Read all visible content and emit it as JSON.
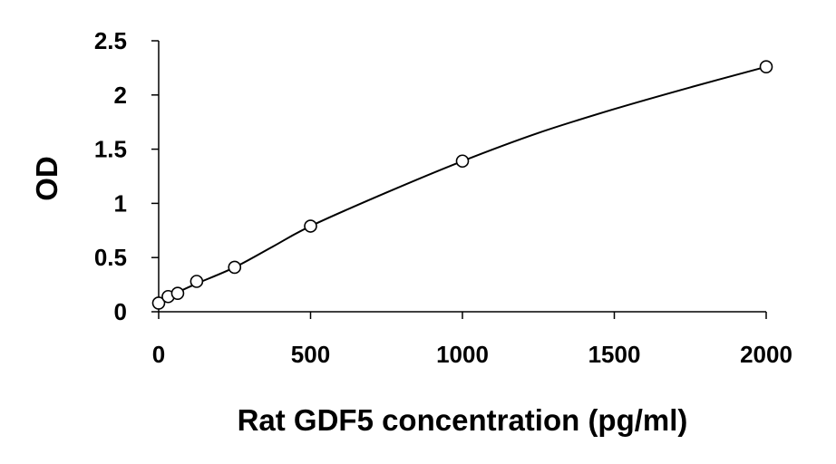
{
  "chart_data": {
    "type": "scatter",
    "title": "",
    "xlabel": "Rat GDF5 concentration (pg/ml)",
    "ylabel": "OD",
    "xlim": [
      0,
      2000
    ],
    "ylim": [
      0,
      2.5
    ],
    "xticks": [
      "0",
      "500",
      "1000",
      "1500",
      "2000"
    ],
    "yticks": [
      "0",
      "0.5",
      "1",
      "1.5",
      "2",
      "2.5"
    ],
    "grid": false,
    "legend": "none",
    "series": [
      {
        "marker": "open-circle",
        "x": [
          0,
          31.25,
          62.5,
          125,
          250,
          500,
          1000,
          2000
        ],
        "y": [
          0.08,
          0.14,
          0.17,
          0.28,
          0.41,
          0.79,
          1.39,
          2.26
        ]
      }
    ],
    "fit_line": {
      "style": "smooth-curve",
      "x": [
        0,
        31.25,
        62.5,
        125,
        250,
        375,
        500,
        750,
        1000,
        1250,
        1500,
        1750,
        2000
      ],
      "y": [
        0.08,
        0.135,
        0.18,
        0.26,
        0.41,
        0.6,
        0.79,
        1.1,
        1.39,
        1.65,
        1.87,
        2.07,
        2.26
      ]
    },
    "colors": {
      "axis": "#000000",
      "marker_stroke": "#000000",
      "line": "#000000"
    }
  }
}
